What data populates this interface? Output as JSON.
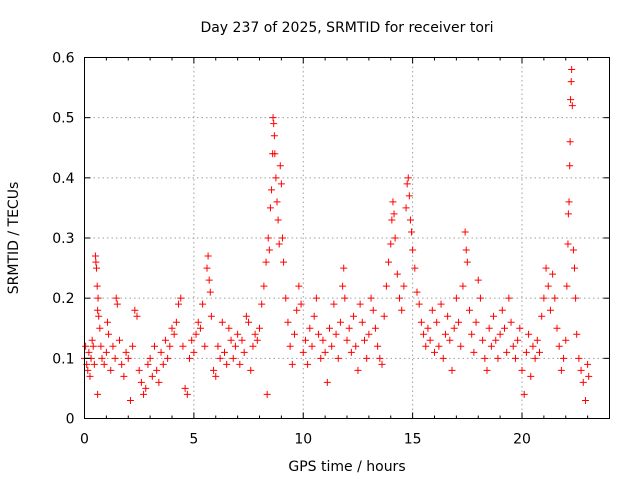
{
  "chart_data": {
    "type": "scatter",
    "title": "Day 237 of 2025, SRMTID for receiver tori",
    "xlabel": "GPS time / hours",
    "ylabel": "SRMTID / TECUs",
    "xlim": [
      0,
      24
    ],
    "ylim": [
      0,
      0.6
    ],
    "x_ticks": [
      0,
      5,
      10,
      15,
      20
    ],
    "x_tick_labels": [
      "0",
      "5",
      "10",
      "15",
      "20"
    ],
    "y_ticks": [
      0,
      0.1,
      0.2,
      0.3,
      0.4,
      0.5,
      0.6
    ],
    "y_tick_labels": [
      "0",
      "0.1",
      "0.2",
      "0.3",
      "0.4",
      "0.5",
      "0.6"
    ],
    "grid": true,
    "marker": "+",
    "color": "#ff0000",
    "series": [
      {
        "name": "SRMTID",
        "points": [
          [
            0.0,
            0.1
          ],
          [
            0.05,
            0.12
          ],
          [
            0.1,
            0.09
          ],
          [
            0.15,
            0.08
          ],
          [
            0.2,
            0.11
          ],
          [
            0.25,
            0.07
          ],
          [
            0.3,
            0.1
          ],
          [
            0.35,
            0.13
          ],
          [
            0.4,
            0.12
          ],
          [
            0.45,
            0.09
          ],
          [
            0.5,
            0.27
          ],
          [
            0.52,
            0.26
          ],
          [
            0.55,
            0.25
          ],
          [
            0.58,
            0.22
          ],
          [
            0.6,
            0.18
          ],
          [
            0.62,
            0.2
          ],
          [
            0.65,
            0.17
          ],
          [
            0.7,
            0.15
          ],
          [
            0.75,
            0.12
          ],
          [
            0.8,
            0.1
          ],
          [
            0.6,
            0.04
          ],
          [
            0.9,
            0.09
          ],
          [
            1.0,
            0.11
          ],
          [
            1.05,
            0.16
          ],
          [
            1.1,
            0.14
          ],
          [
            1.2,
            0.08
          ],
          [
            1.3,
            0.12
          ],
          [
            1.4,
            0.1
          ],
          [
            1.45,
            0.2
          ],
          [
            1.5,
            0.19
          ],
          [
            1.6,
            0.13
          ],
          [
            1.7,
            0.09
          ],
          [
            1.8,
            0.07
          ],
          [
            1.9,
            0.11
          ],
          [
            2.0,
            0.1
          ],
          [
            2.1,
            0.03
          ],
          [
            2.2,
            0.12
          ],
          [
            2.3,
            0.18
          ],
          [
            2.4,
            0.17
          ],
          [
            2.5,
            0.08
          ],
          [
            2.6,
            0.06
          ],
          [
            2.7,
            0.04
          ],
          [
            2.8,
            0.05
          ],
          [
            2.9,
            0.09
          ],
          [
            3.0,
            0.1
          ],
          [
            3.1,
            0.07
          ],
          [
            3.2,
            0.12
          ],
          [
            3.3,
            0.08
          ],
          [
            3.4,
            0.06
          ],
          [
            3.5,
            0.11
          ],
          [
            3.6,
            0.09
          ],
          [
            3.7,
            0.13
          ],
          [
            3.8,
            0.1
          ],
          [
            3.9,
            0.12
          ],
          [
            4.0,
            0.15
          ],
          [
            4.1,
            0.14
          ],
          [
            4.2,
            0.16
          ],
          [
            4.3,
            0.19
          ],
          [
            4.4,
            0.2
          ],
          [
            4.5,
            0.12
          ],
          [
            4.6,
            0.05
          ],
          [
            4.7,
            0.04
          ],
          [
            4.8,
            0.1
          ],
          [
            4.9,
            0.13
          ],
          [
            5.0,
            0.11
          ],
          [
            5.1,
            0.14
          ],
          [
            5.2,
            0.16
          ],
          [
            5.3,
            0.15
          ],
          [
            5.4,
            0.19
          ],
          [
            5.5,
            0.12
          ],
          [
            5.6,
            0.25
          ],
          [
            5.65,
            0.27
          ],
          [
            5.7,
            0.23
          ],
          [
            5.75,
            0.21
          ],
          [
            5.8,
            0.17
          ],
          [
            5.9,
            0.08
          ],
          [
            6.0,
            0.07
          ],
          [
            6.1,
            0.12
          ],
          [
            6.2,
            0.1
          ],
          [
            6.3,
            0.16
          ],
          [
            6.4,
            0.11
          ],
          [
            6.5,
            0.09
          ],
          [
            6.6,
            0.15
          ],
          [
            6.7,
            0.13
          ],
          [
            6.8,
            0.1
          ],
          [
            6.9,
            0.12
          ],
          [
            7.0,
            0.14
          ],
          [
            7.1,
            0.09
          ],
          [
            7.2,
            0.13
          ],
          [
            7.3,
            0.11
          ],
          [
            7.4,
            0.17
          ],
          [
            7.5,
            0.16
          ],
          [
            7.6,
            0.08
          ],
          [
            7.7,
            0.12
          ],
          [
            7.8,
            0.14
          ],
          [
            7.9,
            0.13
          ],
          [
            8.0,
            0.15
          ],
          [
            8.1,
            0.19
          ],
          [
            8.2,
            0.22
          ],
          [
            8.3,
            0.26
          ],
          [
            8.35,
            0.04
          ],
          [
            8.4,
            0.3
          ],
          [
            8.45,
            0.28
          ],
          [
            8.5,
            0.35
          ],
          [
            8.55,
            0.38
          ],
          [
            8.6,
            0.44
          ],
          [
            8.62,
            0.5
          ],
          [
            8.65,
            0.49
          ],
          [
            8.68,
            0.47
          ],
          [
            8.7,
            0.44
          ],
          [
            8.75,
            0.4
          ],
          [
            8.8,
            0.36
          ],
          [
            8.85,
            0.33
          ],
          [
            8.9,
            0.29
          ],
          [
            8.95,
            0.42
          ],
          [
            9.0,
            0.39
          ],
          [
            9.05,
            0.3
          ],
          [
            9.1,
            0.26
          ],
          [
            9.2,
            0.2
          ],
          [
            9.3,
            0.16
          ],
          [
            9.4,
            0.12
          ],
          [
            9.5,
            0.09
          ],
          [
            9.6,
            0.14
          ],
          [
            9.7,
            0.18
          ],
          [
            9.8,
            0.22
          ],
          [
            9.9,
            0.19
          ],
          [
            10.0,
            0.11
          ],
          [
            10.1,
            0.13
          ],
          [
            10.2,
            0.09
          ],
          [
            10.3,
            0.15
          ],
          [
            10.4,
            0.12
          ],
          [
            10.5,
            0.17
          ],
          [
            10.6,
            0.2
          ],
          [
            10.7,
            0.14
          ],
          [
            10.8,
            0.1
          ],
          [
            10.9,
            0.13
          ],
          [
            11.0,
            0.11
          ],
          [
            11.1,
            0.06
          ],
          [
            11.2,
            0.15
          ],
          [
            11.3,
            0.12
          ],
          [
            11.4,
            0.19
          ],
          [
            11.5,
            0.14
          ],
          [
            11.6,
            0.1
          ],
          [
            11.7,
            0.16
          ],
          [
            11.8,
            0.22
          ],
          [
            11.85,
            0.25
          ],
          [
            11.9,
            0.2
          ],
          [
            12.0,
            0.13
          ],
          [
            12.1,
            0.15
          ],
          [
            12.2,
            0.11
          ],
          [
            12.3,
            0.17
          ],
          [
            12.4,
            0.12
          ],
          [
            12.5,
            0.08
          ],
          [
            12.6,
            0.19
          ],
          [
            12.7,
            0.16
          ],
          [
            12.8,
            0.13
          ],
          [
            12.9,
            0.1
          ],
          [
            13.0,
            0.14
          ],
          [
            13.1,
            0.2
          ],
          [
            13.2,
            0.18
          ],
          [
            13.3,
            0.15
          ],
          [
            13.4,
            0.12
          ],
          [
            13.5,
            0.1
          ],
          [
            13.6,
            0.09
          ],
          [
            13.7,
            0.17
          ],
          [
            13.8,
            0.22
          ],
          [
            13.9,
            0.26
          ],
          [
            14.0,
            0.29
          ],
          [
            14.05,
            0.33
          ],
          [
            14.1,
            0.36
          ],
          [
            14.15,
            0.34
          ],
          [
            14.2,
            0.3
          ],
          [
            14.3,
            0.24
          ],
          [
            14.4,
            0.2
          ],
          [
            14.5,
            0.18
          ],
          [
            14.6,
            0.22
          ],
          [
            14.7,
            0.35
          ],
          [
            14.75,
            0.39
          ],
          [
            14.8,
            0.4
          ],
          [
            14.85,
            0.37
          ],
          [
            14.9,
            0.33
          ],
          [
            14.95,
            0.31
          ],
          [
            15.0,
            0.28
          ],
          [
            15.1,
            0.25
          ],
          [
            15.2,
            0.21
          ],
          [
            15.3,
            0.19
          ],
          [
            15.4,
            0.16
          ],
          [
            15.5,
            0.14
          ],
          [
            15.6,
            0.12
          ],
          [
            15.7,
            0.15
          ],
          [
            15.8,
            0.13
          ],
          [
            15.9,
            0.18
          ],
          [
            16.0,
            0.11
          ],
          [
            16.1,
            0.16
          ],
          [
            16.2,
            0.12
          ],
          [
            16.3,
            0.19
          ],
          [
            16.4,
            0.1
          ],
          [
            16.5,
            0.14
          ],
          [
            16.6,
            0.17
          ],
          [
            16.7,
            0.13
          ],
          [
            16.8,
            0.08
          ],
          [
            16.9,
            0.15
          ],
          [
            17.0,
            0.2
          ],
          [
            17.1,
            0.16
          ],
          [
            17.2,
            0.12
          ],
          [
            17.3,
            0.22
          ],
          [
            17.4,
            0.31
          ],
          [
            17.45,
            0.28
          ],
          [
            17.5,
            0.26
          ],
          [
            17.6,
            0.18
          ],
          [
            17.7,
            0.14
          ],
          [
            17.8,
            0.11
          ],
          [
            17.9,
            0.16
          ],
          [
            18.0,
            0.23
          ],
          [
            18.1,
            0.2
          ],
          [
            18.2,
            0.13
          ],
          [
            18.3,
            0.1
          ],
          [
            18.4,
            0.08
          ],
          [
            18.5,
            0.15
          ],
          [
            18.6,
            0.12
          ],
          [
            18.7,
            0.17
          ],
          [
            18.8,
            0.13
          ],
          [
            18.9,
            0.1
          ],
          [
            19.0,
            0.14
          ],
          [
            19.1,
            0.18
          ],
          [
            19.2,
            0.15
          ],
          [
            19.3,
            0.11
          ],
          [
            19.4,
            0.2
          ],
          [
            19.5,
            0.16
          ],
          [
            19.6,
            0.12
          ],
          [
            19.7,
            0.1
          ],
          [
            19.8,
            0.13
          ],
          [
            19.9,
            0.15
          ],
          [
            20.0,
            0.08
          ],
          [
            20.1,
            0.04
          ],
          [
            20.2,
            0.11
          ],
          [
            20.3,
            0.14
          ],
          [
            20.4,
            0.07
          ],
          [
            20.5,
            0.12
          ],
          [
            20.6,
            0.1
          ],
          [
            20.7,
            0.13
          ],
          [
            20.8,
            0.11
          ],
          [
            20.9,
            0.17
          ],
          [
            21.0,
            0.2
          ],
          [
            21.1,
            0.25
          ],
          [
            21.2,
            0.22
          ],
          [
            21.3,
            0.18
          ],
          [
            21.4,
            0.24
          ],
          [
            21.5,
            0.2
          ],
          [
            21.6,
            0.15
          ],
          [
            21.7,
            0.12
          ],
          [
            21.8,
            0.08
          ],
          [
            21.9,
            0.1
          ],
          [
            22.0,
            0.13
          ],
          [
            22.05,
            0.22
          ],
          [
            22.1,
            0.29
          ],
          [
            22.12,
            0.34
          ],
          [
            22.15,
            0.36
          ],
          [
            22.18,
            0.42
          ],
          [
            22.2,
            0.46
          ],
          [
            22.22,
            0.53
          ],
          [
            22.25,
            0.56
          ],
          [
            22.27,
            0.58
          ],
          [
            22.3,
            0.52
          ],
          [
            22.35,
            0.28
          ],
          [
            22.4,
            0.25
          ],
          [
            22.45,
            0.2
          ],
          [
            22.5,
            0.14
          ],
          [
            22.6,
            0.1
          ],
          [
            22.7,
            0.08
          ],
          [
            22.8,
            0.06
          ],
          [
            22.9,
            0.03
          ],
          [
            23.0,
            0.09
          ],
          [
            23.05,
            0.07
          ]
        ]
      }
    ]
  }
}
